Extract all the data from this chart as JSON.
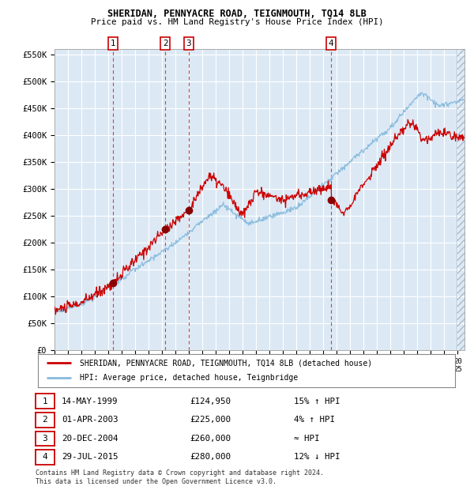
{
  "title": "SHERIDAN, PENNYACRE ROAD, TEIGNMOUTH, TQ14 8LB",
  "subtitle": "Price paid vs. HM Land Registry's House Price Index (HPI)",
  "background_color": "#ffffff",
  "plot_bg_color": "#dce9f5",
  "grid_color": "#ffffff",
  "hpi_color": "#88bbdd",
  "price_color": "#cc0000",
  "marker_color": "#880000",
  "xlim_start": 1995.0,
  "xlim_end": 2025.5,
  "ylim_min": 0,
  "ylim_max": 560000,
  "yticks": [
    0,
    50000,
    100000,
    150000,
    200000,
    250000,
    300000,
    350000,
    400000,
    450000,
    500000,
    550000
  ],
  "ytick_labels": [
    "£0",
    "£50K",
    "£100K",
    "£150K",
    "£200K",
    "£250K",
    "£300K",
    "£350K",
    "£400K",
    "£450K",
    "£500K",
    "£550K"
  ],
  "sales": [
    {
      "num": 1,
      "date": "14-MAY-1999",
      "price": 124950,
      "price_str": "£124,950",
      "rel": "15% ↑ HPI",
      "year": 1999.37
    },
    {
      "num": 2,
      "date": "01-APR-2003",
      "price": 225000,
      "price_str": "£225,000",
      "rel": "4% ↑ HPI",
      "year": 2003.25
    },
    {
      "num": 3,
      "date": "20-DEC-2004",
      "price": 260000,
      "price_str": "£260,000",
      "rel": "≈ HPI",
      "year": 2004.97
    },
    {
      "num": 4,
      "date": "29-JUL-2015",
      "price": 280000,
      "price_str": "£280,000",
      "rel": "12% ↓ HPI",
      "year": 2015.58
    }
  ],
  "legend_line1": "SHERIDAN, PENNYACRE ROAD, TEIGNMOUTH, TQ14 8LB (detached house)",
  "legend_line2": "HPI: Average price, detached house, Teignbridge",
  "footer1": "Contains HM Land Registry data © Crown copyright and database right 2024.",
  "footer2": "This data is licensed under the Open Government Licence v3.0."
}
